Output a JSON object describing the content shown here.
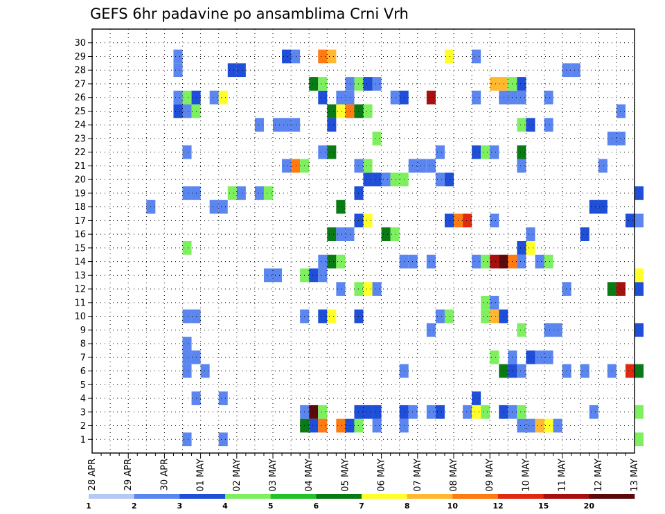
{
  "chart_data": {
    "type": "heatmap",
    "title": "GEFS 6hr padavine po ansamblima Crni Vrh",
    "x_tick_labels": [
      "28 APR",
      "29 APR",
      "30 APR",
      "01 MAY",
      "02 MAY",
      "03 MAY",
      "04 MAY",
      "05 MAY",
      "06 MAY",
      "07 MAY",
      "08 MAY",
      "09 MAY",
      "10 MAY",
      "11 MAY",
      "12 MAY",
      "13 MAY"
    ],
    "y_tick_labels": [
      "1",
      "2",
      "3",
      "4",
      "5",
      "6",
      "7",
      "8",
      "9",
      "10",
      "11",
      "12",
      "13",
      "14",
      "15",
      "16",
      "17",
      "18",
      "19",
      "20",
      "21",
      "22",
      "23",
      "24",
      "25",
      "26",
      "27",
      "28",
      "29",
      "30"
    ],
    "x_unit": "6-hour step since 28 APR",
    "ylim": [
      1,
      30
    ],
    "grid": true,
    "colorbar": {
      "labels": [
        "1",
        "2",
        "3",
        "4",
        "5",
        "6",
        "7",
        "8",
        "10",
        "12",
        "15",
        "20"
      ],
      "colors": [
        "#b6c8f4",
        "#5b86f0",
        "#1f4fd8",
        "#7ef060",
        "#22c22a",
        "#0a7a14",
        "#ffff2a",
        "#ffb830",
        "#ff7a10",
        "#e02a10",
        "#a80f0f",
        "#5a0a0a"
      ]
    },
    "cells": [
      [
        10,
        1,
        1
      ],
      [
        14,
        1,
        1
      ],
      [
        60,
        1,
        3
      ],
      [
        23,
        2,
        5
      ],
      [
        24,
        2,
        2
      ],
      [
        25,
        2,
        8
      ],
      [
        27,
        2,
        8
      ],
      [
        28,
        2,
        2
      ],
      [
        29,
        2,
        3
      ],
      [
        31,
        2,
        1
      ],
      [
        34,
        2,
        1
      ],
      [
        47,
        2,
        1
      ],
      [
        48,
        2,
        1
      ],
      [
        49,
        2,
        7
      ],
      [
        50,
        2,
        6
      ],
      [
        51,
        2,
        1
      ],
      [
        23,
        3,
        1
      ],
      [
        24,
        3,
        11
      ],
      [
        25,
        3,
        3
      ],
      [
        29,
        3,
        2
      ],
      [
        30,
        3,
        2
      ],
      [
        31,
        3,
        2
      ],
      [
        34,
        3,
        2
      ],
      [
        35,
        3,
        1
      ],
      [
        37,
        3,
        1
      ],
      [
        38,
        3,
        2
      ],
      [
        41,
        3,
        1
      ],
      [
        42,
        3,
        6
      ],
      [
        43,
        3,
        3
      ],
      [
        45,
        3,
        2
      ],
      [
        46,
        3,
        1
      ],
      [
        47,
        3,
        3
      ],
      [
        55,
        3,
        1
      ],
      [
        60,
        3,
        3
      ],
      [
        11,
        4,
        1
      ],
      [
        14,
        4,
        1
      ],
      [
        42,
        4,
        2
      ],
      [
        10,
        6,
        1
      ],
      [
        12,
        6,
        1
      ],
      [
        34,
        6,
        1
      ],
      [
        45,
        6,
        5
      ],
      [
        46,
        6,
        2
      ],
      [
        47,
        6,
        1
      ],
      [
        52,
        6,
        1
      ],
      [
        54,
        6,
        1
      ],
      [
        57,
        6,
        1
      ],
      [
        59,
        6,
        9
      ],
      [
        60,
        6,
        5
      ],
      [
        10,
        7,
        1
      ],
      [
        11,
        7,
        1
      ],
      [
        44,
        7,
        3
      ],
      [
        46,
        7,
        1
      ],
      [
        48,
        7,
        2
      ],
      [
        49,
        7,
        1
      ],
      [
        50,
        7,
        1
      ],
      [
        10,
        8,
        1
      ],
      [
        37,
        9,
        1
      ],
      [
        47,
        9,
        3
      ],
      [
        50,
        9,
        1
      ],
      [
        51,
        9,
        1
      ],
      [
        60,
        9,
        2
      ],
      [
        10,
        10,
        1
      ],
      [
        11,
        10,
        1
      ],
      [
        23,
        10,
        1
      ],
      [
        25,
        10,
        2
      ],
      [
        26,
        10,
        6
      ],
      [
        29,
        10,
        2
      ],
      [
        38,
        10,
        1
      ],
      [
        39,
        10,
        3
      ],
      [
        43,
        10,
        3
      ],
      [
        44,
        10,
        7
      ],
      [
        45,
        10,
        2
      ],
      [
        43,
        11,
        3
      ],
      [
        44,
        11,
        1
      ],
      [
        27,
        12,
        1
      ],
      [
        29,
        12,
        3
      ],
      [
        30,
        12,
        6
      ],
      [
        31,
        12,
        1
      ],
      [
        52,
        12,
        1
      ],
      [
        57,
        12,
        5
      ],
      [
        58,
        12,
        10
      ],
      [
        60,
        12,
        2
      ],
      [
        19,
        13,
        1
      ],
      [
        20,
        13,
        1
      ],
      [
        23,
        13,
        3
      ],
      [
        24,
        13,
        2
      ],
      [
        25,
        13,
        1
      ],
      [
        60,
        13,
        6
      ],
      [
        25,
        14,
        1
      ],
      [
        26,
        14,
        5
      ],
      [
        27,
        14,
        3
      ],
      [
        34,
        14,
        1
      ],
      [
        35,
        14,
        1
      ],
      [
        37,
        14,
        1
      ],
      [
        42,
        14,
        1
      ],
      [
        43,
        14,
        3
      ],
      [
        44,
        14,
        10
      ],
      [
        45,
        14,
        11
      ],
      [
        46,
        14,
        8
      ],
      [
        47,
        14,
        1
      ],
      [
        49,
        14,
        1
      ],
      [
        50,
        14,
        3
      ],
      [
        10,
        15,
        3
      ],
      [
        47,
        15,
        2
      ],
      [
        48,
        15,
        6
      ],
      [
        26,
        16,
        5
      ],
      [
        27,
        16,
        1
      ],
      [
        28,
        16,
        1
      ],
      [
        32,
        16,
        5
      ],
      [
        33,
        16,
        3
      ],
      [
        48,
        16,
        1
      ],
      [
        54,
        16,
        2
      ],
      [
        29,
        17,
        2
      ],
      [
        30,
        17,
        6
      ],
      [
        39,
        17,
        2
      ],
      [
        40,
        17,
        8
      ],
      [
        41,
        17,
        9
      ],
      [
        44,
        17,
        1
      ],
      [
        59,
        17,
        2
      ],
      [
        60,
        17,
        1
      ],
      [
        6,
        18,
        1
      ],
      [
        13,
        18,
        1
      ],
      [
        14,
        18,
        1
      ],
      [
        27,
        18,
        5
      ],
      [
        55,
        18,
        2
      ],
      [
        56,
        18,
        2
      ],
      [
        10,
        19,
        1
      ],
      [
        11,
        19,
        1
      ],
      [
        15,
        19,
        3
      ],
      [
        16,
        19,
        1
      ],
      [
        18,
        19,
        1
      ],
      [
        19,
        19,
        3
      ],
      [
        29,
        19,
        2
      ],
      [
        60,
        19,
        2
      ],
      [
        30,
        20,
        2
      ],
      [
        31,
        20,
        2
      ],
      [
        32,
        20,
        1
      ],
      [
        33,
        20,
        3
      ],
      [
        34,
        20,
        3
      ],
      [
        38,
        20,
        1
      ],
      [
        39,
        20,
        2
      ],
      [
        21,
        21,
        1
      ],
      [
        22,
        21,
        8
      ],
      [
        23,
        21,
        3
      ],
      [
        29,
        21,
        1
      ],
      [
        30,
        21,
        3
      ],
      [
        35,
        21,
        1
      ],
      [
        36,
        21,
        1
      ],
      [
        37,
        21,
        1
      ],
      [
        47,
        21,
        1
      ],
      [
        56,
        21,
        1
      ],
      [
        10,
        22,
        1
      ],
      [
        25,
        22,
        1
      ],
      [
        26,
        22,
        5
      ],
      [
        38,
        22,
        1
      ],
      [
        42,
        22,
        2
      ],
      [
        43,
        22,
        3
      ],
      [
        44,
        22,
        1
      ],
      [
        47,
        22,
        5
      ],
      [
        31,
        23,
        3
      ],
      [
        57,
        23,
        1
      ],
      [
        58,
        23,
        1
      ],
      [
        18,
        24,
        1
      ],
      [
        20,
        24,
        1
      ],
      [
        21,
        24,
        1
      ],
      [
        22,
        24,
        1
      ],
      [
        26,
        24,
        2
      ],
      [
        47,
        24,
        3
      ],
      [
        48,
        24,
        2
      ],
      [
        50,
        24,
        1
      ],
      [
        9,
        25,
        2
      ],
      [
        10,
        25,
        1
      ],
      [
        11,
        25,
        3
      ],
      [
        26,
        25,
        5
      ],
      [
        27,
        25,
        6
      ],
      [
        28,
        25,
        8
      ],
      [
        29,
        25,
        5
      ],
      [
        30,
        25,
        3
      ],
      [
        58,
        25,
        1
      ],
      [
        9,
        26,
        1
      ],
      [
        10,
        26,
        3
      ],
      [
        11,
        26,
        2
      ],
      [
        13,
        26,
        1
      ],
      [
        14,
        26,
        6
      ],
      [
        25,
        26,
        2
      ],
      [
        27,
        26,
        1
      ],
      [
        28,
        26,
        1
      ],
      [
        33,
        26,
        1
      ],
      [
        34,
        26,
        2
      ],
      [
        37,
        26,
        10
      ],
      [
        42,
        26,
        1
      ],
      [
        45,
        26,
        1
      ],
      [
        46,
        26,
        1
      ],
      [
        47,
        26,
        1
      ],
      [
        50,
        26,
        1
      ],
      [
        24,
        27,
        5
      ],
      [
        25,
        27,
        3
      ],
      [
        28,
        27,
        1
      ],
      [
        29,
        27,
        3
      ],
      [
        30,
        27,
        2
      ],
      [
        31,
        27,
        1
      ],
      [
        44,
        27,
        7
      ],
      [
        45,
        27,
        7
      ],
      [
        46,
        27,
        3
      ],
      [
        47,
        27,
        2
      ],
      [
        9,
        28,
        1
      ],
      [
        15,
        28,
        2
      ],
      [
        16,
        28,
        2
      ],
      [
        52,
        28,
        1
      ],
      [
        53,
        28,
        1
      ],
      [
        9,
        29,
        1
      ],
      [
        21,
        29,
        2
      ],
      [
        22,
        29,
        1
      ],
      [
        25,
        29,
        8
      ],
      [
        26,
        29,
        7
      ],
      [
        39,
        29,
        6
      ],
      [
        42,
        29,
        1
      ]
    ]
  }
}
